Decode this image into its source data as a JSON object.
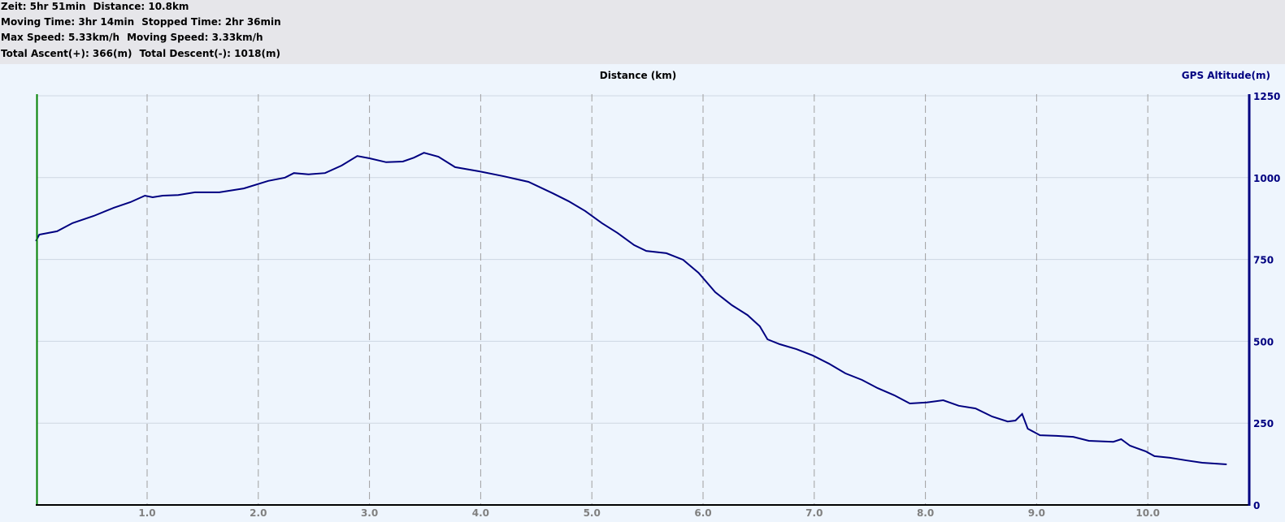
{
  "summary": {
    "lines": [
      [
        "Zeit: 5hr 51min",
        "Distance: 10.8km"
      ],
      [
        "Moving Time: 3hr 14min",
        "Stopped Time: 2hr 36min"
      ],
      [
        "Max Speed: 5.33km/h",
        "Moving Speed: 3.33km/h"
      ],
      [
        "Total Ascent(+): 366(m)",
        "Total Descent(-): 1018(m)"
      ]
    ]
  },
  "chart_data": {
    "type": "line",
    "title": "Distance (km)",
    "xlabel": "Distance (km)",
    "ylabel": "GPS Altitude(m)",
    "xlim": [
      0,
      10.9
    ],
    "ylim": [
      0,
      1250
    ],
    "xticks": [
      "1.0",
      "2.0",
      "3.0",
      "4.0",
      "5.0",
      "6.0",
      "7.0",
      "8.0",
      "9.0",
      "10.0"
    ],
    "yticks": [
      "0",
      "250",
      "500",
      "750",
      "1000",
      "1250"
    ],
    "grid": true,
    "colors": {
      "line": "#000080",
      "start_marker": "#008000",
      "axis": "#000080"
    },
    "series": [
      {
        "x": [
          0.0,
          0.03,
          0.19,
          0.33,
          0.52,
          0.7,
          0.85,
          0.98,
          1.05,
          1.14,
          1.28,
          1.43,
          1.65,
          1.87,
          2.09,
          2.24,
          2.32,
          2.45,
          2.6,
          2.75,
          2.89,
          3.0,
          3.15,
          3.3,
          3.4,
          3.49,
          3.62,
          3.77,
          3.99,
          4.21,
          4.43,
          4.65,
          4.79,
          4.94,
          5.09,
          5.23,
          5.38,
          5.49,
          5.67,
          5.82,
          5.96,
          6.11,
          6.26,
          6.4,
          6.51,
          6.58,
          6.69,
          6.84,
          6.99,
          7.13,
          7.28,
          7.43,
          7.57,
          7.72,
          7.86,
          8.01,
          8.16,
          8.3,
          8.45,
          8.6,
          8.74,
          8.81,
          8.87,
          8.92,
          9.03,
          9.18,
          9.33,
          9.47,
          9.69,
          9.76,
          9.84,
          9.98,
          10.06,
          10.2,
          10.35,
          10.49,
          10.71
        ],
        "y": [
          806,
          826,
          836,
          861,
          883,
          908,
          925,
          945,
          940,
          945,
          947,
          955,
          955,
          967,
          990,
          1000,
          1014,
          1010,
          1014,
          1037,
          1066,
          1059,
          1047,
          1049,
          1061,
          1076,
          1064,
          1032,
          1019,
          1004,
          987,
          952,
          928,
          898,
          861,
          831,
          794,
          776,
          769,
          749,
          709,
          650,
          610,
          580,
          546,
          506,
          491,
          476,
          456,
          432,
          402,
          382,
          357,
          335,
          310,
          313,
          320,
          303,
          295,
          270,
          255,
          258,
          278,
          233,
          213,
          211,
          208,
          196,
          193,
          201,
          181,
          164,
          149,
          144,
          136,
          129,
          124
        ]
      }
    ]
  }
}
